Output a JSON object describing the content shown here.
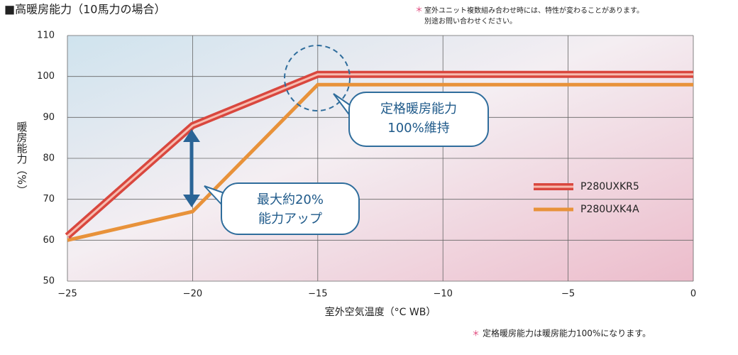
{
  "chart_data": {
    "type": "line",
    "title": "■高暖房能力（10馬力の場合）",
    "note_mark": "＊",
    "note_top": [
      "室外ユニット複数組み合わせ時には、特性が変わることがあります。",
      "別途お問い合わせください。"
    ],
    "note_bottom": "定格暖房能力は暖房能力100%になります。",
    "y_label": "暖房能力（%）",
    "x_label": "室外空気温度（°C WB）",
    "x": [
      -25,
      -20,
      -15,
      0
    ],
    "series": [
      {
        "name": "P280UXKR5",
        "color": "#d9473e",
        "values": [
          61,
          88,
          100.5,
          100.5
        ]
      },
      {
        "name": "P280UXK4A",
        "color": "#e8923a",
        "values": [
          60,
          67,
          98,
          98
        ]
      }
    ],
    "xlim": [
      -25,
      0
    ],
    "xticks": [
      {
        "value": -25,
        "label": "−25"
      },
      {
        "value": -20,
        "label": "−20"
      },
      {
        "value": -15,
        "label": "−15"
      },
      {
        "value": -10,
        "label": "−10"
      },
      {
        "value": -5,
        "label": "−5"
      },
      0
    ],
    "ylim": [
      50,
      110
    ],
    "yticks": [
      50,
      60,
      70,
      80,
      90,
      100,
      110
    ],
    "grid": true,
    "annotations": [
      [
        "定格暖房能力",
        "100%維持"
      ],
      [
        "最大約20%",
        "能力アップ"
      ]
    ]
  }
}
